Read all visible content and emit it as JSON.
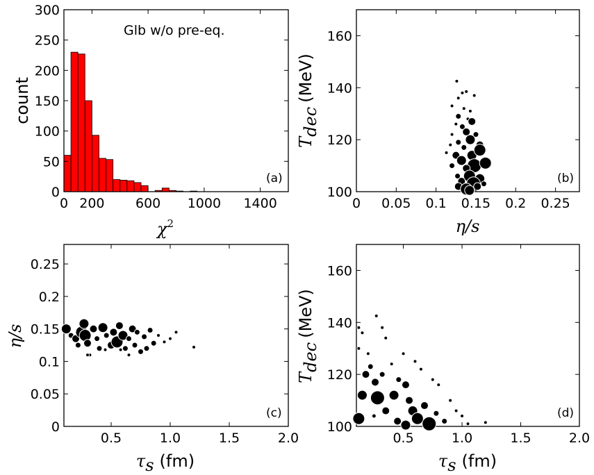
{
  "chart_data": [
    {
      "id": "a",
      "type": "bar",
      "panel_label": "(a)",
      "annotation": "Glb w/o pre-eq.",
      "ylabel": "count",
      "xlabel_sym": "χ",
      "xlabel_sup": "2",
      "xlim": [
        0,
        1600
      ],
      "ylim": [
        0,
        300
      ],
      "xticks": [
        0,
        200,
        600,
        1000,
        1400
      ],
      "xtick_labels": [
        "0",
        "200",
        "600",
        "1000",
        "1400"
      ],
      "yticks": [
        0,
        50,
        100,
        150,
        200,
        250,
        300
      ],
      "ytick_labels": [
        "0",
        "50",
        "100",
        "150",
        "200",
        "250",
        "300"
      ],
      "bar_color": "#ff0000",
      "bin_width": 50,
      "bin_starts": [
        0,
        50,
        100,
        150,
        200,
        250,
        300,
        350,
        400,
        450,
        500,
        550,
        600,
        650,
        700,
        750,
        800,
        850,
        900
      ],
      "values": [
        60,
        230,
        227,
        150,
        93,
        55,
        53,
        20,
        19,
        18,
        15,
        10,
        0,
        2,
        6,
        2,
        1,
        0,
        1
      ]
    },
    {
      "id": "b",
      "type": "scatter",
      "panel_label": "(b)",
      "ylabel_main": "T",
      "ylabel_sub": "dec",
      "ylabel_unit": "(MeV)",
      "xlabel": "η/s",
      "xlim": [
        0,
        0.28
      ],
      "ylim": [
        100,
        170
      ],
      "xticks": [
        0,
        0.05,
        0.1,
        0.15,
        0.2,
        0.25
      ],
      "xtick_labels": [
        "0",
        "0.05",
        "0.1",
        "0.15",
        "0.2",
        "0.25"
      ],
      "yticks": [
        100,
        120,
        140,
        160
      ],
      "ytick_labels": [
        "100",
        "120",
        "140",
        "160"
      ],
      "points": [
        [
          0.126,
          142.5,
          1
        ],
        [
          0.133,
          138,
          1
        ],
        [
          0.138,
          138.5,
          1
        ],
        [
          0.128,
          136,
          1
        ],
        [
          0.148,
          137,
          1
        ],
        [
          0.12,
          133,
          1
        ],
        [
          0.135,
          132,
          1
        ],
        [
          0.143,
          131,
          1
        ],
        [
          0.128,
          129,
          2
        ],
        [
          0.14,
          128,
          1
        ],
        [
          0.125,
          126,
          1
        ],
        [
          0.133,
          125,
          2
        ],
        [
          0.145,
          127,
          3
        ],
        [
          0.12,
          122,
          1
        ],
        [
          0.138,
          123,
          3
        ],
        [
          0.15,
          122,
          2
        ],
        [
          0.128,
          119,
          2
        ],
        [
          0.118,
          118,
          1
        ],
        [
          0.143,
          120,
          4
        ],
        [
          0.135,
          117,
          2
        ],
        [
          0.155,
          118,
          3
        ],
        [
          0.113,
          115,
          1
        ],
        [
          0.125,
          114,
          3
        ],
        [
          0.145,
          114,
          4
        ],
        [
          0.155,
          116,
          5
        ],
        [
          0.132,
          112,
          4
        ],
        [
          0.148,
          110,
          6
        ],
        [
          0.162,
          111,
          5
        ],
        [
          0.12,
          110,
          2
        ],
        [
          0.138,
          109,
          3
        ],
        [
          0.127,
          106,
          2
        ],
        [
          0.142,
          106,
          5
        ],
        [
          0.155,
          105,
          4
        ],
        [
          0.132,
          104,
          3
        ],
        [
          0.147,
          103,
          6
        ],
        [
          0.128,
          102,
          3
        ],
        [
          0.138,
          101,
          5
        ],
        [
          0.152,
          102,
          3
        ],
        [
          0.142,
          100.5,
          4
        ],
        [
          0.16,
          103,
          2
        ]
      ]
    },
    {
      "id": "c",
      "type": "scatter",
      "panel_label": "(c)",
      "ylabel": "η/s",
      "xlabel_sym": "τ",
      "xlabel_sub": "s",
      "xlabel_unit": "(fm)",
      "xlim": [
        0.1,
        2.0
      ],
      "ylim": [
        0,
        0.28
      ],
      "xticks": [
        0.5,
        1.0,
        1.5,
        2.0
      ],
      "xtick_labels": [
        "0.5",
        "1.0",
        "1.5",
        "2.0"
      ],
      "yticks": [
        0,
        0.05,
        0.1,
        0.15,
        0.2,
        0.25
      ],
      "ytick_labels": [
        "0",
        "0.05",
        "0.1",
        "0.15",
        "0.2",
        "0.25"
      ],
      "points": [
        [
          0.12,
          0.15,
          4
        ],
        [
          0.16,
          0.14,
          2
        ],
        [
          0.2,
          0.135,
          3
        ],
        [
          0.22,
          0.125,
          2
        ],
        [
          0.25,
          0.145,
          5
        ],
        [
          0.27,
          0.158,
          4
        ],
        [
          0.28,
          0.14,
          5
        ],
        [
          0.3,
          0.128,
          3
        ],
        [
          0.32,
          0.11,
          1
        ],
        [
          0.35,
          0.15,
          3
        ],
        [
          0.38,
          0.135,
          2
        ],
        [
          0.4,
          0.12,
          2
        ],
        [
          0.43,
          0.152,
          4
        ],
        [
          0.46,
          0.14,
          2
        ],
        [
          0.5,
          0.125,
          3
        ],
        [
          0.52,
          0.145,
          3
        ],
        [
          0.55,
          0.13,
          5
        ],
        [
          0.57,
          0.155,
          3
        ],
        [
          0.6,
          0.14,
          4
        ],
        [
          0.62,
          0.12,
          2
        ],
        [
          0.65,
          0.135,
          2
        ],
        [
          0.68,
          0.15,
          3
        ],
        [
          0.7,
          0.125,
          2
        ],
        [
          0.72,
          0.145,
          2
        ],
        [
          0.75,
          0.115,
          2
        ],
        [
          0.78,
          0.138,
          2
        ],
        [
          0.8,
          0.12,
          2
        ],
        [
          0.83,
          0.148,
          2
        ],
        [
          0.86,
          0.128,
          2
        ],
        [
          0.9,
          0.14,
          1
        ],
        [
          0.95,
          0.13,
          1
        ],
        [
          1.0,
          0.135,
          1
        ],
        [
          1.05,
          0.145,
          1
        ],
        [
          1.2,
          0.122,
          1
        ],
        [
          0.58,
          0.118,
          1
        ],
        [
          0.3,
          0.11,
          1
        ],
        [
          0.45,
          0.118,
          1
        ],
        [
          0.65,
          0.11,
          1
        ]
      ]
    },
    {
      "id": "d",
      "type": "scatter",
      "panel_label": "(d)",
      "ylabel_main": "T",
      "ylabel_sub": "dec",
      "ylabel_unit": "(MeV)",
      "xlabel_sym": "τ",
      "xlabel_sub": "s",
      "xlabel_unit": "(fm)",
      "xlim": [
        0.1,
        2.0
      ],
      "ylim": [
        100,
        170
      ],
      "xticks": [
        0.5,
        1.0,
        1.5,
        2.0
      ],
      "xtick_labels": [
        "0.5",
        "1.0",
        "1.5",
        "2.0"
      ],
      "yticks": [
        100,
        120,
        140,
        160
      ],
      "ytick_labels": [
        "100",
        "120",
        "140",
        "160"
      ],
      "points": [
        [
          0.27,
          142.5,
          1
        ],
        [
          0.12,
          138,
          1
        ],
        [
          0.32,
          138,
          1
        ],
        [
          0.15,
          136,
          1
        ],
        [
          0.35,
          134,
          1
        ],
        [
          0.12,
          130,
          1
        ],
        [
          0.2,
          128,
          1
        ],
        [
          0.5,
          128,
          1
        ],
        [
          0.6,
          125,
          1
        ],
        [
          0.22,
          123,
          2
        ],
        [
          0.4,
          124,
          1
        ],
        [
          0.65,
          122,
          1
        ],
        [
          0.18,
          120,
          3
        ],
        [
          0.32,
          120,
          2
        ],
        [
          0.46,
          118,
          2
        ],
        [
          0.75,
          118,
          1
        ],
        [
          0.26,
          117,
          3
        ],
        [
          0.52,
          116,
          3
        ],
        [
          0.8,
          116,
          1
        ],
        [
          0.15,
          112,
          4
        ],
        [
          0.28,
          111,
          6
        ],
        [
          0.42,
          112,
          4
        ],
        [
          0.55,
          110,
          3
        ],
        [
          0.68,
          108,
          3
        ],
        [
          0.9,
          110,
          1
        ],
        [
          0.35,
          106,
          3
        ],
        [
          0.58,
          106,
          4
        ],
        [
          0.78,
          105,
          2
        ],
        [
          0.95,
          106,
          1
        ],
        [
          0.12,
          103,
          5
        ],
        [
          0.25,
          104,
          7
        ],
        [
          0.45,
          102,
          3
        ],
        [
          0.62,
          103,
          5
        ],
        [
          0.72,
          101,
          6
        ],
        [
          0.85,
          102,
          2
        ],
        [
          1.0,
          104,
          1
        ],
        [
          1.05,
          101,
          1
        ],
        [
          1.2,
          101.5,
          1
        ],
        [
          0.52,
          100.5,
          4
        ]
      ]
    }
  ]
}
